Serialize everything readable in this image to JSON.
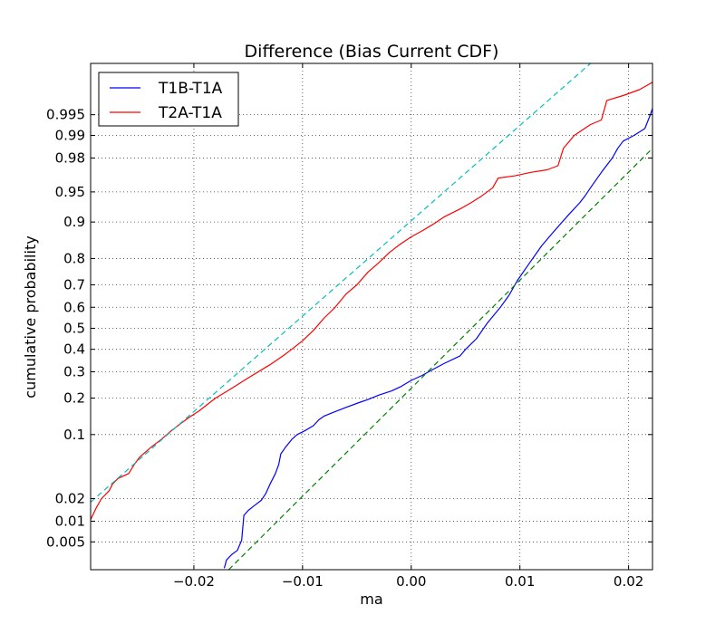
{
  "chart_data": {
    "type": "line",
    "title": "Difference (Bias Current CDF)",
    "xlabel": "ma",
    "ylabel": "cumulative probability",
    "xlim": [
      -0.0295,
      0.0222
    ],
    "y_scale": "probit (normal probability)",
    "ylim_probability": [
      0.0018,
      0.9993
    ],
    "x_ticks": [
      {
        "value": -0.02,
        "label": "−0.02"
      },
      {
        "value": -0.01,
        "label": "−0.01"
      },
      {
        "value": 0.0,
        "label": "0.00"
      },
      {
        "value": 0.01,
        "label": "0.01"
      },
      {
        "value": 0.02,
        "label": "0.02"
      }
    ],
    "y_ticks": [
      {
        "value": 0.005,
        "label": "0.005"
      },
      {
        "value": 0.01,
        "label": "0.01"
      },
      {
        "value": 0.02,
        "label": "0.02"
      },
      {
        "value": 0.1,
        "label": "0.1"
      },
      {
        "value": 0.2,
        "label": "0.2"
      },
      {
        "value": 0.3,
        "label": "0.3"
      },
      {
        "value": 0.4,
        "label": "0.4"
      },
      {
        "value": 0.5,
        "label": "0.5"
      },
      {
        "value": 0.6,
        "label": "0.6"
      },
      {
        "value": 0.7,
        "label": "0.7"
      },
      {
        "value": 0.8,
        "label": "0.8"
      },
      {
        "value": 0.9,
        "label": "0.9"
      },
      {
        "value": 0.95,
        "label": "0.95"
      },
      {
        "value": 0.98,
        "label": "0.98"
      },
      {
        "value": 0.99,
        "label": "0.99"
      },
      {
        "value": 0.995,
        "label": "0.995"
      }
    ],
    "grid": true,
    "legend_position": "top-left",
    "series": [
      {
        "name": "T1B-T1A",
        "color": "#0000ff",
        "style": "solid",
        "in_legend": true,
        "points": [
          [
            -0.0172,
            0.0019
          ],
          [
            -0.017,
            0.0026
          ],
          [
            -0.0165,
            0.0032
          ],
          [
            -0.016,
            0.0037
          ],
          [
            -0.0156,
            0.0053
          ],
          [
            -0.0154,
            0.012
          ],
          [
            -0.015,
            0.014
          ],
          [
            -0.0145,
            0.016
          ],
          [
            -0.0138,
            0.019
          ],
          [
            -0.0134,
            0.023
          ],
          [
            -0.013,
            0.03
          ],
          [
            -0.0125,
            0.04
          ],
          [
            -0.0122,
            0.05
          ],
          [
            -0.012,
            0.065
          ],
          [
            -0.0116,
            0.075
          ],
          [
            -0.011,
            0.09
          ],
          [
            -0.0105,
            0.1
          ],
          [
            -0.0098,
            0.108
          ],
          [
            -0.009,
            0.12
          ],
          [
            -0.0085,
            0.135
          ],
          [
            -0.008,
            0.145
          ],
          [
            -0.0072,
            0.155
          ],
          [
            -0.006,
            0.17
          ],
          [
            -0.0048,
            0.185
          ],
          [
            -0.004,
            0.195
          ],
          [
            -0.003,
            0.21
          ],
          [
            -0.0018,
            0.225
          ],
          [
            -0.001,
            0.24
          ],
          [
            0.0,
            0.265
          ],
          [
            0.001,
            0.285
          ],
          [
            0.002,
            0.31
          ],
          [
            0.003,
            0.335
          ],
          [
            0.0045,
            0.37
          ],
          [
            0.005,
            0.4
          ],
          [
            0.006,
            0.45
          ],
          [
            0.007,
            0.525
          ],
          [
            0.0082,
            0.6
          ],
          [
            0.009,
            0.655
          ],
          [
            0.0098,
            0.72
          ],
          [
            0.0108,
            0.78
          ],
          [
            0.012,
            0.84
          ],
          [
            0.013,
            0.875
          ],
          [
            0.0145,
            0.915
          ],
          [
            0.0155,
            0.935
          ],
          [
            0.016,
            0.945
          ],
          [
            0.0165,
            0.955
          ],
          [
            0.0175,
            0.97
          ],
          [
            0.0185,
            0.98
          ],
          [
            0.019,
            0.985
          ],
          [
            0.0195,
            0.988
          ],
          [
            0.0205,
            0.99
          ],
          [
            0.0215,
            0.992
          ],
          [
            0.022,
            0.995
          ],
          [
            0.0222,
            0.996
          ]
        ]
      },
      {
        "name": "T2A-T1A",
        "color": "#ff0000",
        "style": "solid",
        "in_legend": true,
        "points": [
          [
            -0.0295,
            0.0105
          ],
          [
            -0.029,
            0.015
          ],
          [
            -0.0285,
            0.02
          ],
          [
            -0.0278,
            0.025
          ],
          [
            -0.0275,
            0.03
          ],
          [
            -0.027,
            0.035
          ],
          [
            -0.026,
            0.04
          ],
          [
            -0.0255,
            0.05
          ],
          [
            -0.025,
            0.06
          ],
          [
            -0.024,
            0.075
          ],
          [
            -0.023,
            0.09
          ],
          [
            -0.022,
            0.11
          ],
          [
            -0.0205,
            0.14
          ],
          [
            -0.0195,
            0.16
          ],
          [
            -0.018,
            0.2
          ],
          [
            -0.0165,
            0.235
          ],
          [
            -0.015,
            0.275
          ],
          [
            -0.013,
            0.33
          ],
          [
            -0.0118,
            0.37
          ],
          [
            -0.011,
            0.4
          ],
          [
            -0.01,
            0.44
          ],
          [
            -0.009,
            0.49
          ],
          [
            -0.008,
            0.55
          ],
          [
            -0.007,
            0.6
          ],
          [
            -0.006,
            0.66
          ],
          [
            -0.005,
            0.7
          ],
          [
            -0.004,
            0.75
          ],
          [
            -0.003,
            0.785
          ],
          [
            -0.002,
            0.82
          ],
          [
            -0.001,
            0.845
          ],
          [
            0.0,
            0.865
          ],
          [
            0.001,
            0.88
          ],
          [
            0.002,
            0.895
          ],
          [
            0.003,
            0.91
          ],
          [
            0.0045,
            0.925
          ],
          [
            0.0055,
            0.935
          ],
          [
            0.0065,
            0.945
          ],
          [
            0.0075,
            0.955
          ],
          [
            0.008,
            0.965
          ],
          [
            0.0095,
            0.967
          ],
          [
            0.011,
            0.97
          ],
          [
            0.0125,
            0.972
          ],
          [
            0.0135,
            0.975
          ],
          [
            0.014,
            0.985
          ],
          [
            0.015,
            0.99
          ],
          [
            0.0165,
            0.993
          ],
          [
            0.0175,
            0.994
          ],
          [
            0.018,
            0.997
          ],
          [
            0.0195,
            0.9975
          ],
          [
            0.021,
            0.998
          ],
          [
            0.0222,
            0.9985
          ]
        ]
      },
      {
        "name": "",
        "color": "#00bfbf",
        "style": "dashed",
        "in_legend": false,
        "points": [
          [
            -0.0295,
            0.018
          ],
          [
            0.0165,
            0.9993
          ]
        ]
      },
      {
        "name": "",
        "color": "#008000",
        "style": "dashed",
        "in_legend": false,
        "points": [
          [
            -0.0168,
            0.0018
          ],
          [
            0.0222,
            0.985
          ]
        ]
      }
    ]
  }
}
